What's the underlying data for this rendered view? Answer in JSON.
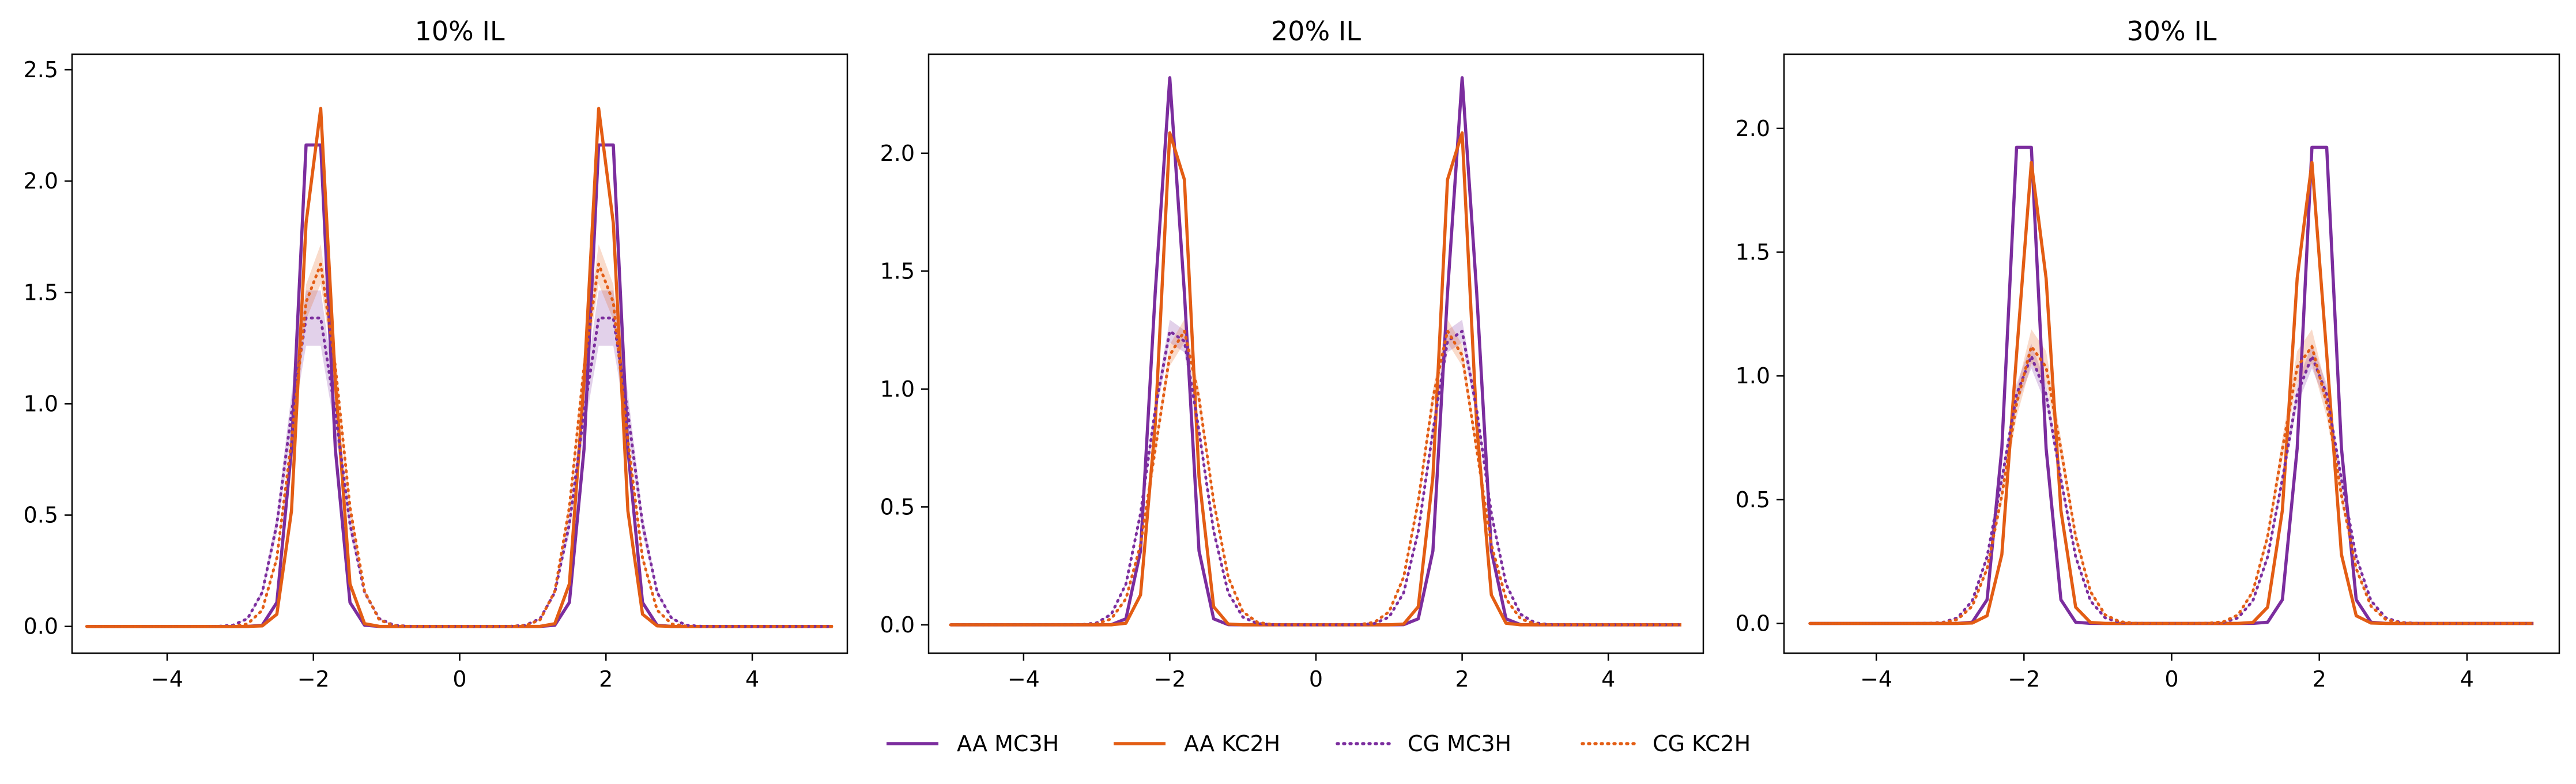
{
  "legend": [
    {
      "name": "AA MC3H",
      "color": "#7b2d9e",
      "style": "solid"
    },
    {
      "name": "AA KC2H",
      "color": "#e35d14",
      "style": "solid"
    },
    {
      "name": "CG MC3H",
      "color": "#7b2d9e",
      "style": "dotted"
    },
    {
      "name": "CG KC2H",
      "color": "#e35d14",
      "style": "dotted"
    }
  ],
  "chart_data": [
    {
      "type": "line",
      "title": "10% IL",
      "xlabel": "",
      "ylabel": "",
      "xlim": [
        -5.3,
        5.3
      ],
      "ylim": [
        -0.12,
        2.57
      ],
      "xticks": [
        -4,
        -2,
        0,
        2,
        4
      ],
      "yticks": [
        0.0,
        0.5,
        1.0,
        1.5,
        2.0,
        2.5
      ],
      "ytick_labels": [
        "0.0",
        "0.5",
        "1.0",
        "1.5",
        "2.0",
        "2.5"
      ],
      "x_domain": [
        -5.1,
        5.1
      ],
      "grid": false,
      "series": [
        {
          "name": "AA MC3H",
          "style": "solid",
          "color": "#7b2d9e",
          "peaks": [
            {
              "center": -2.0,
              "height": 2.45,
              "width": 0.2
            },
            {
              "center": 2.0,
              "height": 2.45,
              "width": 0.2
            }
          ]
        },
        {
          "name": "AA KC2H",
          "style": "solid",
          "color": "#e35d14",
          "peaks": [
            {
              "center": -1.95,
              "height": 2.4,
              "width": 0.2
            },
            {
              "center": 1.95,
              "height": 2.4,
              "width": 0.2
            }
          ]
        },
        {
          "name": "CG MC3H",
          "style": "dotted",
          "color": "#7b2d9e",
          "band": 0.13,
          "peaks": [
            {
              "center": -2.0,
              "height": 1.45,
              "width": 0.33
            },
            {
              "center": 2.0,
              "height": 1.45,
              "width": 0.33
            }
          ]
        },
        {
          "name": "CG KC2H",
          "style": "dotted",
          "color": "#e35d14",
          "band": 0.09,
          "peaks": [
            {
              "center": -1.95,
              "height": 1.65,
              "width": 0.3
            },
            {
              "center": 1.95,
              "height": 1.65,
              "width": 0.3
            }
          ]
        }
      ]
    },
    {
      "type": "line",
      "title": "20% IL",
      "xlabel": "",
      "ylabel": "",
      "xlim": [
        -5.3,
        5.3
      ],
      "ylim": [
        -0.12,
        2.42
      ],
      "xticks": [
        -4,
        -2,
        0,
        2,
        4
      ],
      "yticks": [
        0.0,
        0.5,
        1.0,
        1.5,
        2.0
      ],
      "ytick_labels": [
        "0.0",
        "0.5",
        "1.0",
        "1.5",
        "2.0"
      ],
      "x_domain": [
        -5.0,
        5.0
      ],
      "grid": false,
      "series": [
        {
          "name": "AA MC3H",
          "style": "solid",
          "color": "#7b2d9e",
          "peaks": [
            {
              "center": -2.0,
              "height": 2.32,
              "width": 0.2
            },
            {
              "center": 2.0,
              "height": 2.32,
              "width": 0.2
            }
          ]
        },
        {
          "name": "AA KC2H",
          "style": "solid",
          "color": "#e35d14",
          "peaks": [
            {
              "center": -1.92,
              "height": 2.26,
              "width": 0.2
            },
            {
              "center": 1.92,
              "height": 2.26,
              "width": 0.2
            }
          ]
        },
        {
          "name": "CG MC3H",
          "style": "dotted",
          "color": "#7b2d9e",
          "band": 0.05,
          "peaks": [
            {
              "center": -1.92,
              "height": 1.28,
              "width": 0.34
            },
            {
              "center": 1.92,
              "height": 1.28,
              "width": 0.34
            }
          ]
        },
        {
          "name": "CG KC2H",
          "style": "dotted",
          "color": "#e35d14",
          "band": 0.05,
          "peaks": [
            {
              "center": -1.85,
              "height": 1.26,
              "width": 0.34
            },
            {
              "center": 1.85,
              "height": 1.26,
              "width": 0.34
            }
          ]
        }
      ]
    },
    {
      "type": "line",
      "title": "30% IL",
      "xlabel": "",
      "ylabel": "",
      "xlim": [
        -5.25,
        5.25
      ],
      "ylim": [
        -0.12,
        2.3
      ],
      "xticks": [
        -4,
        -2,
        0,
        2,
        4
      ],
      "yticks": [
        0.0,
        0.5,
        1.0,
        1.5,
        2.0
      ],
      "ytick_labels": [
        "0.0",
        "0.5",
        "1.0",
        "1.5",
        "2.0"
      ],
      "x_domain": [
        -4.9,
        4.9
      ],
      "grid": false,
      "series": [
        {
          "name": "AA MC3H",
          "style": "solid",
          "color": "#7b2d9e",
          "peaks": [
            {
              "center": -2.0,
              "height": 2.18,
              "width": 0.2
            },
            {
              "center": 2.0,
              "height": 2.18,
              "width": 0.2
            }
          ]
        },
        {
          "name": "AA KC2H",
          "style": "solid",
          "color": "#e35d14",
          "peaks": [
            {
              "center": -1.87,
              "height": 1.88,
              "width": 0.22
            },
            {
              "center": 1.87,
              "height": 1.88,
              "width": 0.22
            }
          ]
        },
        {
          "name": "CG MC3H",
          "style": "dotted",
          "color": "#7b2d9e",
          "band": 0.05,
          "peaks": [
            {
              "center": -1.9,
              "height": 1.08,
              "width": 0.36
            },
            {
              "center": 1.9,
              "height": 1.08,
              "width": 0.36
            }
          ]
        },
        {
          "name": "CG KC2H",
          "style": "dotted",
          "color": "#e35d14",
          "band": 0.07,
          "peaks": [
            {
              "center": -1.85,
              "height": 1.13,
              "width": 0.36
            },
            {
              "center": 1.85,
              "height": 1.13,
              "width": 0.36
            }
          ]
        }
      ]
    }
  ]
}
